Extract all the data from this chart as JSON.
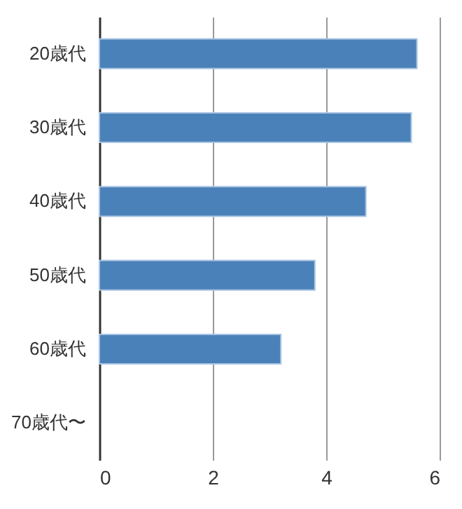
{
  "chart_data": {
    "type": "bar",
    "orientation": "horizontal",
    "categories": [
      "20歳代",
      "30歳代",
      "40歳代",
      "50歳代",
      "60歳代",
      "70歳代〜"
    ],
    "values": [
      5.6,
      5.5,
      4.7,
      3.8,
      3.2,
      null
    ],
    "color": "#4a81b8",
    "xlim": [
      0,
      6
    ],
    "xticks": [
      0,
      2,
      4,
      6
    ],
    "grid": "x"
  }
}
